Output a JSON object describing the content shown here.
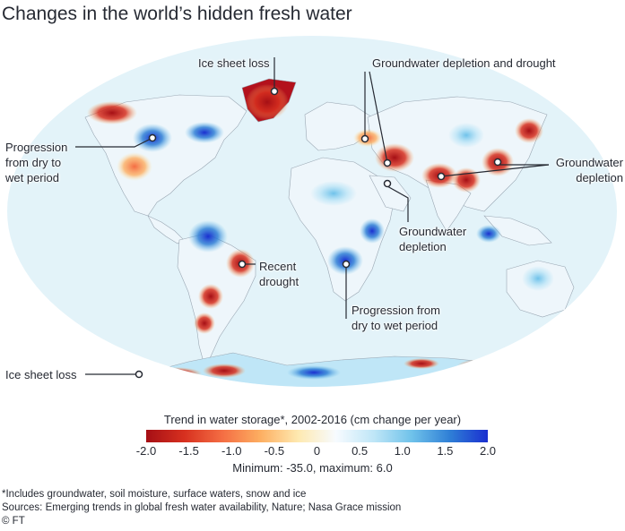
{
  "title": "Changes in the world’s hidden fresh water",
  "annotations": {
    "ice_sheet_loss_top": "Ice sheet loss",
    "groundwater_depletion_drought": "Groundwater depletion and drought",
    "progression_na_1": "Progression",
    "progression_na_2": "from dry to",
    "progression_na_3": "wet period",
    "groundwater_depletion_right_1": "Groundwater",
    "groundwater_depletion_right_2": "depletion",
    "groundwater_depletion_mid_1": "Groundwater",
    "groundwater_depletion_mid_2": "depletion",
    "recent_drought_1": "Recent",
    "recent_drought_2": "drought",
    "progression_af_1": "Progression from",
    "progression_af_2": "dry to wet period",
    "ice_sheet_loss_bottom": "Ice sheet loss"
  },
  "legend": {
    "title": "Trend in water storage*, 2002-2016 (cm change per year)",
    "ticks": [
      "-2.0",
      "-1.5",
      "-1.0",
      "-0.5",
      "0",
      "0.5",
      "1.0",
      "1.5",
      "2.0"
    ],
    "tick_values": [
      -2.0,
      -1.5,
      -1.0,
      -0.5,
      0,
      0.5,
      1.0,
      1.5,
      2.0
    ],
    "minmax": "Minimum: -35.0, maximum: 6.0",
    "colors": [
      "#a50f15",
      "#d7301f",
      "#f46d43",
      "#fdae61",
      "#fee9b0",
      "#f7fbff",
      "#bfe6f7",
      "#6fc2ea",
      "#2f7fd6",
      "#1a2fd0"
    ]
  },
  "footnotes": {
    "note": "*Includes groundwater, soil moisture, surface waters, snow and ice",
    "sources": "Sources: Emerging trends in global fresh water availability, Nature; Nasa Grace mission",
    "credit": "© FT"
  },
  "colors": {
    "ocean": "#dff2f8",
    "land": "#f4f8fb",
    "loss": "#b3111c",
    "gain": "#2a4bd8"
  }
}
